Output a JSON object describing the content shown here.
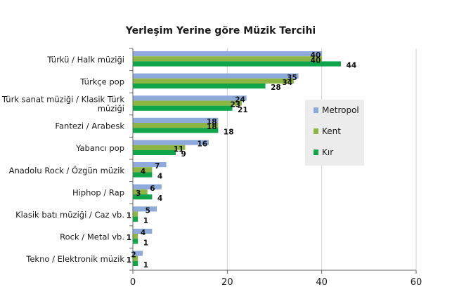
{
  "chart_data": {
    "type": "bar",
    "orientation": "horizontal",
    "title": "Yerleşim Yerine göre Müzik Tercihi",
    "xlabel": "",
    "ylabel": "",
    "xlim": [
      0,
      60
    ],
    "xticks": [
      "0",
      "20",
      "40",
      "60"
    ],
    "grid": true,
    "legend_position": "right",
    "categories": [
      [
        "Türkü / Halk müziği"
      ],
      [
        "Türkçe pop"
      ],
      [
        "Türk sanat müziği / Klasik Türk",
        "müziği"
      ],
      [
        "Fantezi / Arabesk"
      ],
      [
        "Yabancı pop"
      ],
      [
        "Anadolu Rock / Özgün müzik"
      ],
      [
        "Hiphop / Rap"
      ],
      [
        "Klasik batı müziği / Caz vb."
      ],
      [
        "Rock / Metal vb."
      ],
      [
        "Tekno / Elektronik müzik"
      ]
    ],
    "series": [
      {
        "name": "Metropol",
        "color": "#8eaadb",
        "values": [
          40,
          35,
          24,
          18,
          16,
          7,
          6,
          5,
          4,
          2
        ]
      },
      {
        "name": "Kent",
        "color": "#8db543",
        "values": [
          40,
          34,
          23,
          18,
          11,
          4,
          3,
          1,
          1,
          1
        ]
      },
      {
        "name": "Kır",
        "color": "#10a54a",
        "values": [
          44,
          28,
          21,
          18,
          9,
          4,
          4,
          1,
          1,
          1
        ]
      }
    ]
  }
}
